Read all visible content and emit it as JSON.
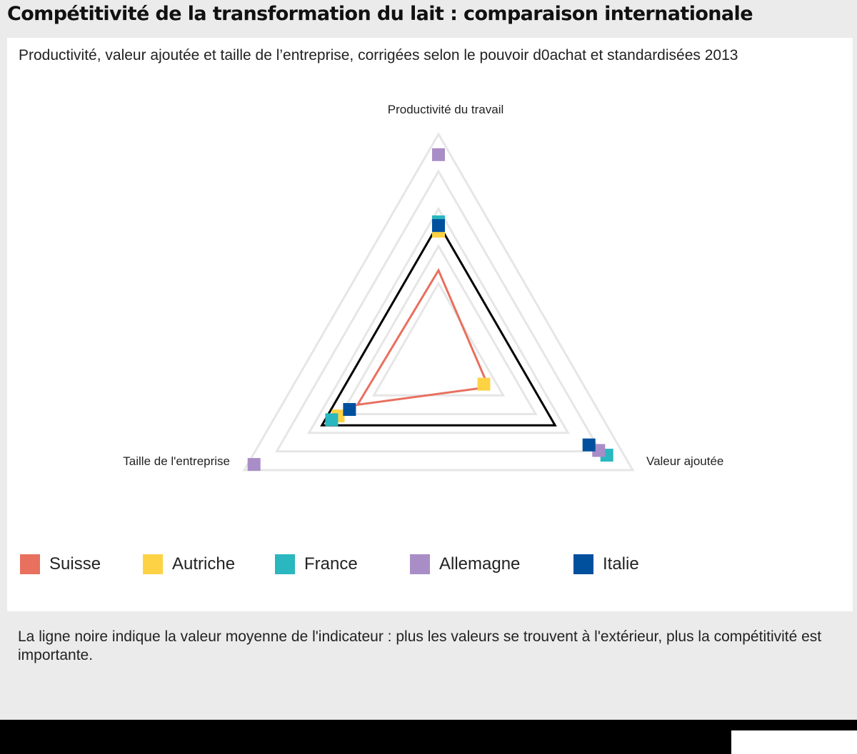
{
  "title": "Compétitivité de la transformation du lait : comparaison internationale",
  "subtitle": "Productivité, valeur ajoutée et taille de l’entreprise, corrigées selon le pouvoir d0achat et standardisées 2013",
  "footnote": "La ligne noire indique la valeur moyenne de l'indicateur : plus les valeurs se trouvent à l'extérieur, plus la compétitivité est importante.",
  "colors": {
    "Suisse": "#e8705f",
    "Autriche": "#fdd345",
    "France": "#2ab7bf",
    "Allemagne": "#a98dc7",
    "Italie": "#00509e",
    "average": "#000000",
    "grid": "#e6e6e6"
  },
  "chart_data": {
    "type": "radar",
    "axes": [
      "Productivité du travail",
      "Valeur ajoutée",
      "Taille de l'entreprise"
    ],
    "rmax": 6,
    "grid_levels": [
      2,
      3,
      4,
      5,
      6
    ],
    "average": [
      3.6,
      3.6,
      3.6
    ],
    "series": [
      {
        "name": "Suisse",
        "values": [
          2.35,
          1.55,
          2.5
        ],
        "style": "line"
      },
      {
        "name": "Autriche",
        "values": [
          3.4,
          1.4,
          3.1
        ],
        "style": "marker"
      },
      {
        "name": "France",
        "values": [
          3.65,
          5.2,
          3.3
        ],
        "style": "marker"
      },
      {
        "name": "Allemagne",
        "values": [
          5.45,
          4.95,
          5.7
        ],
        "style": "marker"
      },
      {
        "name": "Italie",
        "values": [
          3.55,
          4.65,
          2.75
        ],
        "style": "marker"
      }
    ]
  }
}
